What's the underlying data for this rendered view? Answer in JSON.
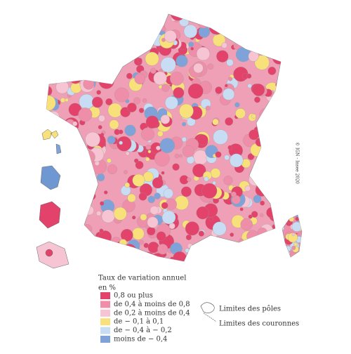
{
  "copyright": "© IGN - Insee 2020",
  "legend": {
    "title": "Taux de variation annuel",
    "unit": "en %",
    "items": [
      {
        "label": "0,8 ou plus",
        "color": "#e3426b"
      },
      {
        "label": "de 0,4 à moins de 0,8",
        "color": "#ee8ea8"
      },
      {
        "label": "de 0,2 à moins de 0,4",
        "color": "#f6c4d3"
      },
      {
        "label": "de − 0,1 à 0,1",
        "color": "#f8e07a"
      },
      {
        "label": "de − 0,4 à − 0,2",
        "color": "#c8ddf4"
      },
      {
        "label": "moins de − 0,4",
        "color": "#7fa3d9"
      }
    ],
    "boundaries": [
      "Limites des pôles",
      "Limites des couronnes"
    ]
  }
}
